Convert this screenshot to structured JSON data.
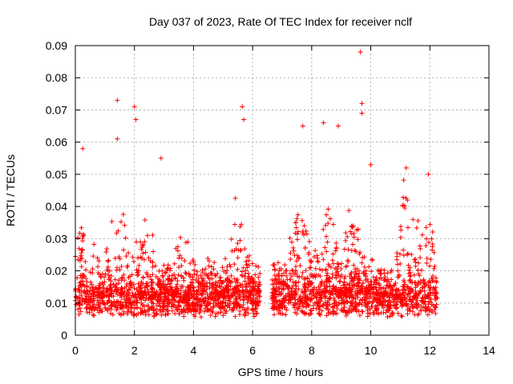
{
  "chart_data": {
    "type": "scatter",
    "title": "Day 037 of 2023, Rate Of TEC Index for receiver nclf",
    "xlabel": "GPS time / hours",
    "ylabel": "ROTI / TECUs",
    "xlim": [
      0,
      14
    ],
    "ylim": [
      0,
      0.09
    ],
    "grid": true,
    "marker": "+",
    "color": "#ff0000",
    "x_ticks": [
      0,
      2,
      4,
      6,
      8,
      10,
      12,
      14
    ],
    "x_tick_labels": [
      "0",
      "2",
      "4",
      "6",
      "8",
      "10",
      "12",
      "14"
    ],
    "y_ticks": [
      0,
      0.01,
      0.02,
      0.03,
      0.04,
      0.05,
      0.06,
      0.07,
      0.08,
      0.09
    ],
    "y_tick_labels": [
      "0",
      "0.01",
      "0.02",
      "0.03",
      "0.04",
      "0.05",
      "0.06",
      "0.07",
      "0.08",
      "0.09"
    ],
    "series": [
      {
        "name": "ROTI",
        "x_range_hours": [
          [
            0.0,
            6.25
          ],
          [
            6.65,
            12.25
          ]
        ],
        "typical_range": [
          0.005,
          0.025
        ],
        "notable_points": [
          {
            "x": 0.25,
            "y": 0.058
          },
          {
            "x": 1.42,
            "y": 0.073
          },
          {
            "x": 1.42,
            "y": 0.061
          },
          {
            "x": 2.0,
            "y": 0.071
          },
          {
            "x": 2.05,
            "y": 0.067
          },
          {
            "x": 2.9,
            "y": 0.055
          },
          {
            "x": 5.65,
            "y": 0.071
          },
          {
            "x": 5.7,
            "y": 0.067
          },
          {
            "x": 7.7,
            "y": 0.065
          },
          {
            "x": 8.4,
            "y": 0.066
          },
          {
            "x": 8.9,
            "y": 0.065
          },
          {
            "x": 9.65,
            "y": 0.088
          },
          {
            "x": 9.7,
            "y": 0.072
          },
          {
            "x": 9.7,
            "y": 0.069
          },
          {
            "x": 10.0,
            "y": 0.053
          },
          {
            "x": 11.2,
            "y": 0.052
          },
          {
            "x": 11.95,
            "y": 0.05
          }
        ]
      }
    ]
  }
}
